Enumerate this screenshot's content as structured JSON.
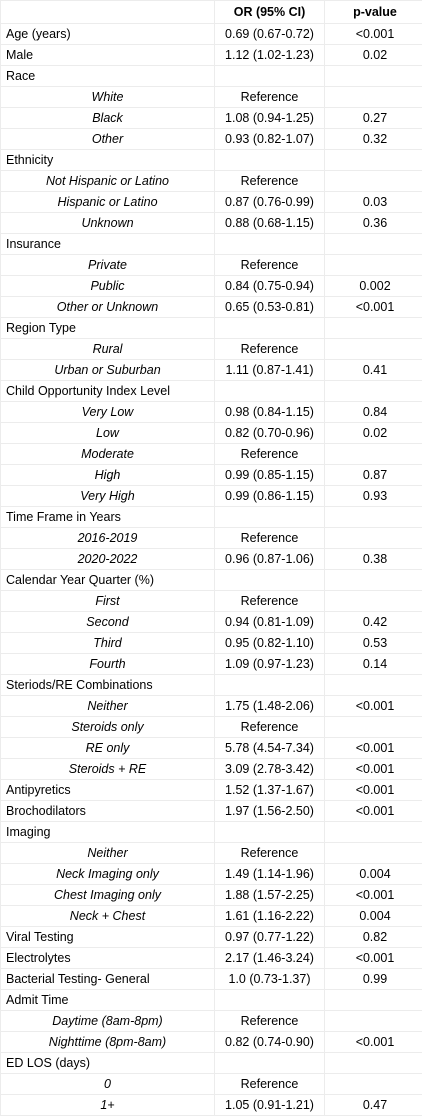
{
  "table": {
    "header": [
      "OR (95% CI)",
      "p-value"
    ],
    "rows": [
      {
        "label": "Age (years)",
        "or": "0.69 (0.67-0.72)",
        "p": "<0.001"
      },
      {
        "label": "Male",
        "or": "1.12 (1.02-1.23)",
        "p": "0.02"
      },
      {
        "label": "Race"
      },
      {
        "label": "White",
        "sub": true,
        "or": "Reference"
      },
      {
        "label": "Black",
        "sub": true,
        "or": "1.08 (0.94-1.25)",
        "p": "0.27"
      },
      {
        "label": "Other",
        "sub": true,
        "or": "0.93 (0.82-1.07)",
        "p": "0.32"
      },
      {
        "label": "Ethnicity"
      },
      {
        "label": "Not Hispanic or Latino",
        "sub": true,
        "or": "Reference"
      },
      {
        "label": "Hispanic or Latino",
        "sub": true,
        "or": "0.87 (0.76-0.99)",
        "p": "0.03"
      },
      {
        "label": "Unknown",
        "sub": true,
        "or": "0.88 (0.68-1.15)",
        "p": "0.36"
      },
      {
        "label": "Insurance"
      },
      {
        "label": "Private",
        "sub": true,
        "or": "Reference"
      },
      {
        "label": "Public",
        "sub": true,
        "or": "0.84 (0.75-0.94)",
        "p": "0.002"
      },
      {
        "label": "Other or Unknown",
        "sub": true,
        "or": "0.65 (0.53-0.81)",
        "p": "<0.001"
      },
      {
        "label": "Region Type"
      },
      {
        "label": "Rural",
        "sub": true,
        "or": "Reference"
      },
      {
        "label": "Urban or Suburban",
        "sub": true,
        "or": "1.11 (0.87-1.41)",
        "p": "0.41"
      },
      {
        "label": "Child Opportunity Index Level"
      },
      {
        "label": "Very Low",
        "sub": true,
        "or": "0.98 (0.84-1.15)",
        "p": "0.84"
      },
      {
        "label": "Low",
        "sub": true,
        "or": "0.82 (0.70-0.96)",
        "p": "0.02"
      },
      {
        "label": "Moderate",
        "sub": true,
        "or": "Reference"
      },
      {
        "label": "High",
        "sub": true,
        "or": "0.99 (0.85-1.15)",
        "p": "0.87"
      },
      {
        "label": "Very High",
        "sub": true,
        "or": "0.99 (0.86-1.15)",
        "p": "0.93"
      },
      {
        "label": "Time Frame in Years"
      },
      {
        "label": "2016-2019",
        "sub": true,
        "or": "Reference"
      },
      {
        "label": "2020-2022",
        "sub": true,
        "or": "0.96 (0.87-1.06)",
        "p": "0.38"
      },
      {
        "label": "Calendar Year Quarter (%)"
      },
      {
        "label": "First",
        "sub": true,
        "or": "Reference"
      },
      {
        "label": "Second",
        "sub": true,
        "or": "0.94 (0.81-1.09)",
        "p": "0.42"
      },
      {
        "label": "Third",
        "sub": true,
        "or": "0.95 (0.82-1.10)",
        "p": "0.53"
      },
      {
        "label": "Fourth",
        "sub": true,
        "or": "1.09 (0.97-1.23)",
        "p": "0.14"
      },
      {
        "label": "Steriods/RE Combinations"
      },
      {
        "label": "Neither",
        "sub": true,
        "or": "1.75 (1.48-2.06)",
        "p": "<0.001"
      },
      {
        "label": "Steroids only",
        "sub": true,
        "or": "Reference"
      },
      {
        "label": "RE only",
        "sub": true,
        "or": "5.78 (4.54-7.34)",
        "p": "<0.001"
      },
      {
        "label": "Steroids + RE",
        "sub": true,
        "or": "3.09 (2.78-3.42)",
        "p": "<0.001"
      },
      {
        "label": "Antipyretics",
        "or": "1.52 (1.37-1.67)",
        "p": "<0.001"
      },
      {
        "label": "Brochodilators",
        "or": "1.97 (1.56-2.50)",
        "p": "<0.001"
      },
      {
        "label": "Imaging"
      },
      {
        "label": "Neither",
        "sub": true,
        "or": "Reference"
      },
      {
        "label": "Neck Imaging only",
        "sub": true,
        "or": "1.49 (1.14-1.96)",
        "p": "0.004"
      },
      {
        "label": "Chest Imaging only",
        "sub": true,
        "or": "1.88 (1.57-2.25)",
        "p": "<0.001"
      },
      {
        "label": "Neck + Chest",
        "sub": true,
        "or": "1.61 (1.16-2.22)",
        "p": "0.004"
      },
      {
        "label": "Viral Testing",
        "or": "0.97 (0.77-1.22)",
        "p": "0.82"
      },
      {
        "label": "Electrolytes",
        "or": "2.17 (1.46-3.24)",
        "p": "<0.001"
      },
      {
        "label": "Bacterial Testing- General",
        "or": "1.0 (0.73-1.37)",
        "p": "0.99"
      },
      {
        "label": "Admit Time"
      },
      {
        "label": "Daytime (8am-8pm)",
        "sub": true,
        "or": "Reference"
      },
      {
        "label": "Nighttime (8pm-8am)",
        "sub": true,
        "or": "0.82 (0.74-0.90)",
        "p": "<0.001"
      },
      {
        "label": "ED LOS (days)"
      },
      {
        "label": "0",
        "sub": true,
        "or": "Reference"
      },
      {
        "label": "1+",
        "sub": true,
        "or": "1.05 (0.91-1.21)",
        "p": "0.47"
      }
    ]
  }
}
